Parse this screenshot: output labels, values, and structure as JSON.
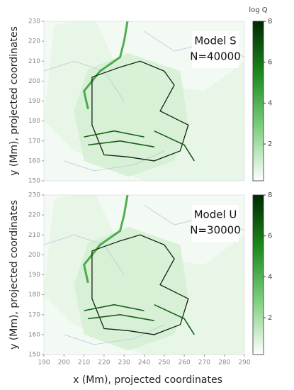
{
  "chart_data": [
    {
      "type": "heatmap",
      "annotation": [
        "Model S",
        "N=40000"
      ],
      "ylabel": "y (Mm), projected coordinates",
      "xlim": [
        190,
        290
      ],
      "ylim": [
        150,
        230
      ],
      "yticks": [
        150,
        160,
        170,
        180,
        190,
        200,
        210,
        220,
        230
      ],
      "colorbar": {
        "label": "log Q",
        "lim": [
          0.2,
          8
        ],
        "ticks": [
          2,
          4,
          6,
          8
        ],
        "colors": [
          "#ffffff",
          "#7fd07f",
          "#1e8c1e",
          "#002800"
        ]
      }
    },
    {
      "type": "heatmap",
      "annotation": [
        "Model U",
        "N=30000"
      ],
      "ylabel": "y (Mm), projected coordinates",
      "xlabel": "x (Mm), projected coordinates",
      "xlim": [
        190,
        290
      ],
      "ylim": [
        150,
        230
      ],
      "xticks": [
        190,
        200,
        210,
        220,
        230,
        240,
        250,
        260,
        270,
        280,
        290
      ],
      "yticks": [
        150,
        160,
        170,
        180,
        190,
        200,
        210,
        220,
        230
      ],
      "colorbar": {
        "lim": [
          0.2,
          8
        ],
        "ticks": [
          2,
          4,
          6,
          8
        ],
        "colors": [
          "#ffffff",
          "#7fd07f",
          "#1e8c1e",
          "#002800"
        ]
      }
    }
  ]
}
